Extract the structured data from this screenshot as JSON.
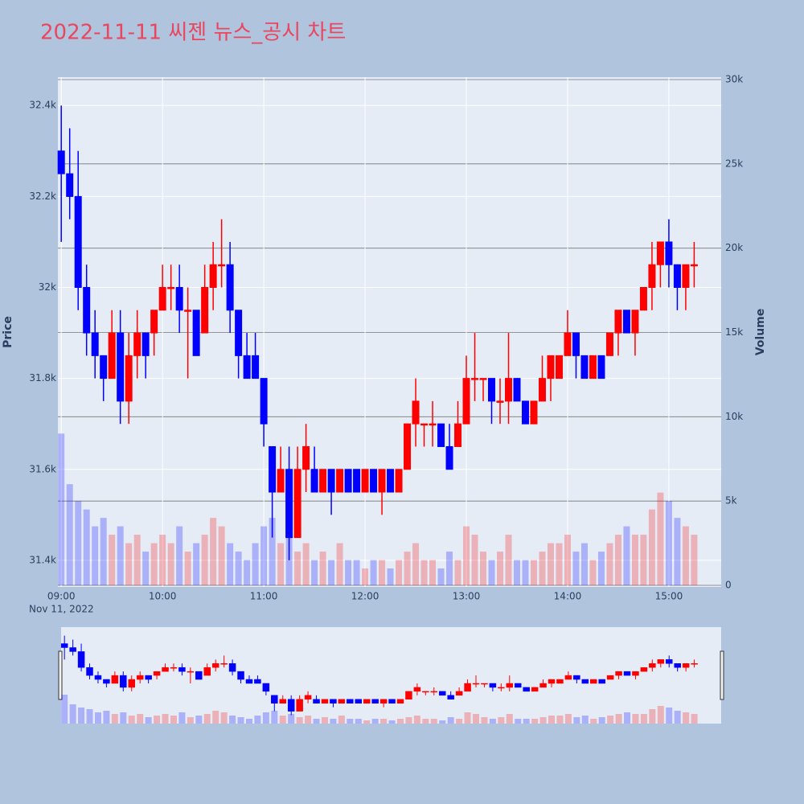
{
  "chart_data": {
    "type": "candlestick",
    "title": "2022-11-11 씨젠 뉴스_공시 차트",
    "yaxis_title": "Price",
    "y2axis_title": "Volume",
    "x_date_label": "Nov 11, 2022",
    "increasing_color": "#ff0000",
    "decreasing_color": "#0000ff",
    "x": [
      "2022-11-11 09:00",
      "2022-11-11 09:05",
      "2022-11-11 09:10",
      "2022-11-11 09:15",
      "2022-11-11 09:20",
      "2022-11-11 09:25",
      "2022-11-11 09:30",
      "2022-11-11 09:35",
      "2022-11-11 09:40",
      "2022-11-11 09:45",
      "2022-11-11 09:50",
      "2022-11-11 09:55",
      "2022-11-11 10:00",
      "2022-11-11 10:05",
      "2022-11-11 10:10",
      "2022-11-11 10:15",
      "2022-11-11 10:20",
      "2022-11-11 10:25",
      "2022-11-11 10:30",
      "2022-11-11 10:35",
      "2022-11-11 10:40",
      "2022-11-11 10:45",
      "2022-11-11 10:50",
      "2022-11-11 10:55",
      "2022-11-11 11:00",
      "2022-11-11 11:05",
      "2022-11-11 11:10",
      "2022-11-11 11:15",
      "2022-11-11 11:20",
      "2022-11-11 11:25",
      "2022-11-11 11:30",
      "2022-11-11 11:35",
      "2022-11-11 11:40",
      "2022-11-11 11:45",
      "2022-11-11 11:50",
      "2022-11-11 11:55",
      "2022-11-11 12:00",
      "2022-11-11 12:05",
      "2022-11-11 12:10",
      "2022-11-11 12:15",
      "2022-11-11 12:20",
      "2022-11-11 12:25",
      "2022-11-11 12:30",
      "2022-11-11 12:35",
      "2022-11-11 12:40",
      "2022-11-11 12:45",
      "2022-11-11 12:50",
      "2022-11-11 12:55",
      "2022-11-11 13:00",
      "2022-11-11 13:05",
      "2022-11-11 13:10",
      "2022-11-11 13:15",
      "2022-11-11 13:20",
      "2022-11-11 13:25",
      "2022-11-11 13:30",
      "2022-11-11 13:35",
      "2022-11-11 13:40",
      "2022-11-11 13:45",
      "2022-11-11 13:50",
      "2022-11-11 13:55",
      "2022-11-11 14:00",
      "2022-11-11 14:05",
      "2022-11-11 14:10",
      "2022-11-11 14:15",
      "2022-11-11 14:20",
      "2022-11-11 14:25",
      "2022-11-11 14:30",
      "2022-11-11 14:35",
      "2022-11-11 14:40",
      "2022-11-11 14:45",
      "2022-11-11 14:50",
      "2022-11-11 14:55",
      "2022-11-11 15:00",
      "2022-11-11 15:05",
      "2022-11-11 15:10",
      "2022-11-11 15:15"
    ],
    "open": [
      32300,
      32250,
      32200,
      32000,
      31900,
      31850,
      31800,
      31900,
      31750,
      31850,
      31900,
      31900,
      31950,
      32000,
      32000,
      31950,
      31950,
      31900,
      32000,
      32050,
      32050,
      31950,
      31850,
      31850,
      31800,
      31650,
      31550,
      31600,
      31450,
      31600,
      31600,
      31550,
      31600,
      31550,
      31600,
      31600,
      31550,
      31600,
      31550,
      31600,
      31550,
      31600,
      31700,
      31700,
      31700,
      31700,
      31650,
      31650,
      31700,
      31800,
      31800,
      31800,
      31750,
      31750,
      31800,
      31750,
      31700,
      31750,
      31800,
      31800,
      31850,
      31900,
      31850,
      31800,
      31850,
      31850,
      31900,
      31950,
      31900,
      31950,
      32000,
      32050,
      32100,
      32050,
      32000,
      32050
    ],
    "high": [
      32400,
      32350,
      32300,
      32050,
      31950,
      31850,
      31950,
      31950,
      31900,
      31950,
      31900,
      31950,
      32050,
      32050,
      32050,
      32000,
      31950,
      32050,
      32100,
      32150,
      32100,
      31950,
      31900,
      31900,
      31800,
      31650,
      31650,
      31650,
      31650,
      31700,
      31650,
      31600,
      31600,
      31600,
      31600,
      31600,
      31600,
      31600,
      31600,
      31600,
      31600,
      31700,
      31800,
      31700,
      31750,
      31700,
      31700,
      31750,
      31850,
      31900,
      31800,
      31800,
      31800,
      31900,
      31800,
      31750,
      31750,
      31850,
      31850,
      31850,
      31950,
      31900,
      31850,
      31850,
      31850,
      31900,
      31950,
      31950,
      31950,
      32000,
      32100,
      32100,
      32150,
      32050,
      32050,
      32100
    ],
    "low": [
      32100,
      32150,
      31950,
      31850,
      31800,
      31750,
      31800,
      31700,
      31700,
      31800,
      31800,
      31850,
      31950,
      31950,
      31900,
      31800,
      31850,
      31900,
      31950,
      32000,
      31900,
      31800,
      31800,
      31800,
      31650,
      31450,
      31550,
      31400,
      31450,
      31550,
      31550,
      31550,
      31500,
      31550,
      31550,
      31550,
      31550,
      31550,
      31500,
      31550,
      31550,
      31600,
      31650,
      31650,
      31650,
      31650,
      31600,
      31650,
      31700,
      31750,
      31750,
      31700,
      31700,
      31700,
      31750,
      31700,
      31700,
      31750,
      31750,
      31800,
      31850,
      31800,
      31800,
      31800,
      31800,
      31850,
      31850,
      31900,
      31850,
      31950,
      31950,
      32000,
      32000,
      31950,
      31950,
      32000
    ],
    "close": [
      32250,
      32200,
      32000,
      31900,
      31850,
      31800,
      31900,
      31750,
      31850,
      31900,
      31850,
      31950,
      32000,
      32000,
      31950,
      31950,
      31850,
      32000,
      32050,
      32050,
      31950,
      31850,
      31800,
      31800,
      31700,
      31550,
      31600,
      31450,
      31600,
      31650,
      31550,
      31600,
      31550,
      31600,
      31550,
      31550,
      31600,
      31550,
      31600,
      31550,
      31600,
      31700,
      31750,
      31700,
      31700,
      31650,
      31600,
      31700,
      31800,
      31800,
      31800,
      31750,
      31750,
      31800,
      31750,
      31700,
      31750,
      31800,
      31850,
      31850,
      31900,
      31850,
      31800,
      31850,
      31800,
      31900,
      31950,
      31900,
      31950,
      32000,
      32050,
      32100,
      32050,
      32000,
      32050,
      32050
    ],
    "volume": [
      9000,
      6000,
      5000,
      4500,
      3500,
      4000,
      3000,
      3500,
      2500,
      3000,
      2000,
      2500,
      3000,
      2500,
      3500,
      2000,
      2500,
      3000,
      4000,
      3500,
      2500,
      2000,
      1500,
      2500,
      3500,
      4000,
      2500,
      3000,
      2000,
      2500,
      1500,
      2000,
      1500,
      2500,
      1500,
      1500,
      1000,
      1500,
      1500,
      1000,
      1500,
      2000,
      2500,
      1500,
      1500,
      1000,
      2000,
      1500,
      3500,
      3000,
      2000,
      1500,
      2000,
      3000,
      1500,
      1500,
      1500,
      2000,
      2500,
      2500,
      3000,
      2000,
      2500,
      1500,
      2000,
      2500,
      3000,
      3500,
      3000,
      3000,
      4500,
      5500,
      5000,
      4000,
      3500,
      3000
    ],
    "xlim": [
      "2022-11-11 08:58",
      "2022-11-11 15:31"
    ],
    "xticks": [
      {
        "value": "2022-11-11 09:00",
        "label": "09:00"
      },
      {
        "value": "2022-11-11 10:00",
        "label": "10:00"
      },
      {
        "value": "2022-11-11 11:00",
        "label": "11:00"
      },
      {
        "value": "2022-11-11 12:00",
        "label": "12:00"
      },
      {
        "value": "2022-11-11 13:00",
        "label": "13:00"
      },
      {
        "value": "2022-11-11 14:00",
        "label": "14:00"
      },
      {
        "value": "2022-11-11 15:00",
        "label": "15:00"
      }
    ],
    "ylim": [
      31345,
      32457
    ],
    "yticks": [
      {
        "value": 31400,
        "label": "31.4k"
      },
      {
        "value": 31600,
        "label": "31.6k"
      },
      {
        "value": 31800,
        "label": "31.8k"
      },
      {
        "value": 32000,
        "label": "32k"
      },
      {
        "value": 32200,
        "label": "32.2k"
      },
      {
        "value": 32400,
        "label": "32.4k"
      }
    ],
    "y2lim": [
      0,
      30000
    ],
    "y2ticks": [
      0,
      {
        "value": 5000,
        "label": "5k"
      },
      {
        "value": 10000,
        "label": "10k"
      },
      {
        "value": 15000,
        "label": "15k"
      },
      {
        "value": 20000,
        "label": "20k"
      },
      {
        "value": 25000,
        "label": "25k"
      },
      {
        "value": 30000,
        "label": "30k"
      }
    ],
    "grid": true,
    "rangeslider": true
  }
}
